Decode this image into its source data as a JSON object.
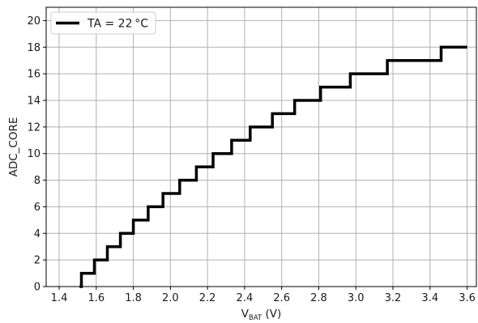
{
  "chart_data": {
    "type": "line",
    "style": "step",
    "xlabel_main": "V",
    "xlabel_sub": "BAT",
    "xlabel_rest": " (V)",
    "ylabel": "ADC_CORE",
    "xlim": [
      1.33,
      3.65
    ],
    "ylim": [
      0,
      21
    ],
    "xticks": [
      1.4,
      1.6,
      1.8,
      2.0,
      2.2,
      2.4,
      2.6,
      2.8,
      3.0,
      3.2,
      3.4,
      3.6
    ],
    "xtick_labels": [
      "1.4",
      "1.6",
      "1.8",
      "2.0",
      "2.2",
      "2.4",
      "2.6",
      "2.8",
      "3.0",
      "3.2",
      "3.4",
      "3.6"
    ],
    "yticks": [
      0,
      2,
      4,
      6,
      8,
      10,
      12,
      14,
      16,
      18,
      20
    ],
    "ytick_labels": [
      "0",
      "2",
      "4",
      "6",
      "8",
      "10",
      "12",
      "14",
      "16",
      "18",
      "20"
    ],
    "grid": true,
    "legend_position": "top-left",
    "series": [
      {
        "name": "TA = 22 °C",
        "color": "#000000",
        "x": [
          1.51,
          1.52,
          1.59,
          1.66,
          1.73,
          1.8,
          1.88,
          1.96,
          2.05,
          2.14,
          2.23,
          2.33,
          2.43,
          2.55,
          2.67,
          2.81,
          2.97,
          3.17,
          3.46,
          3.6
        ],
        "y": [
          0,
          1,
          2,
          3,
          4,
          5,
          6,
          7,
          8,
          9,
          10,
          11,
          12,
          13,
          14,
          15,
          16,
          17,
          18,
          18
        ]
      }
    ]
  }
}
